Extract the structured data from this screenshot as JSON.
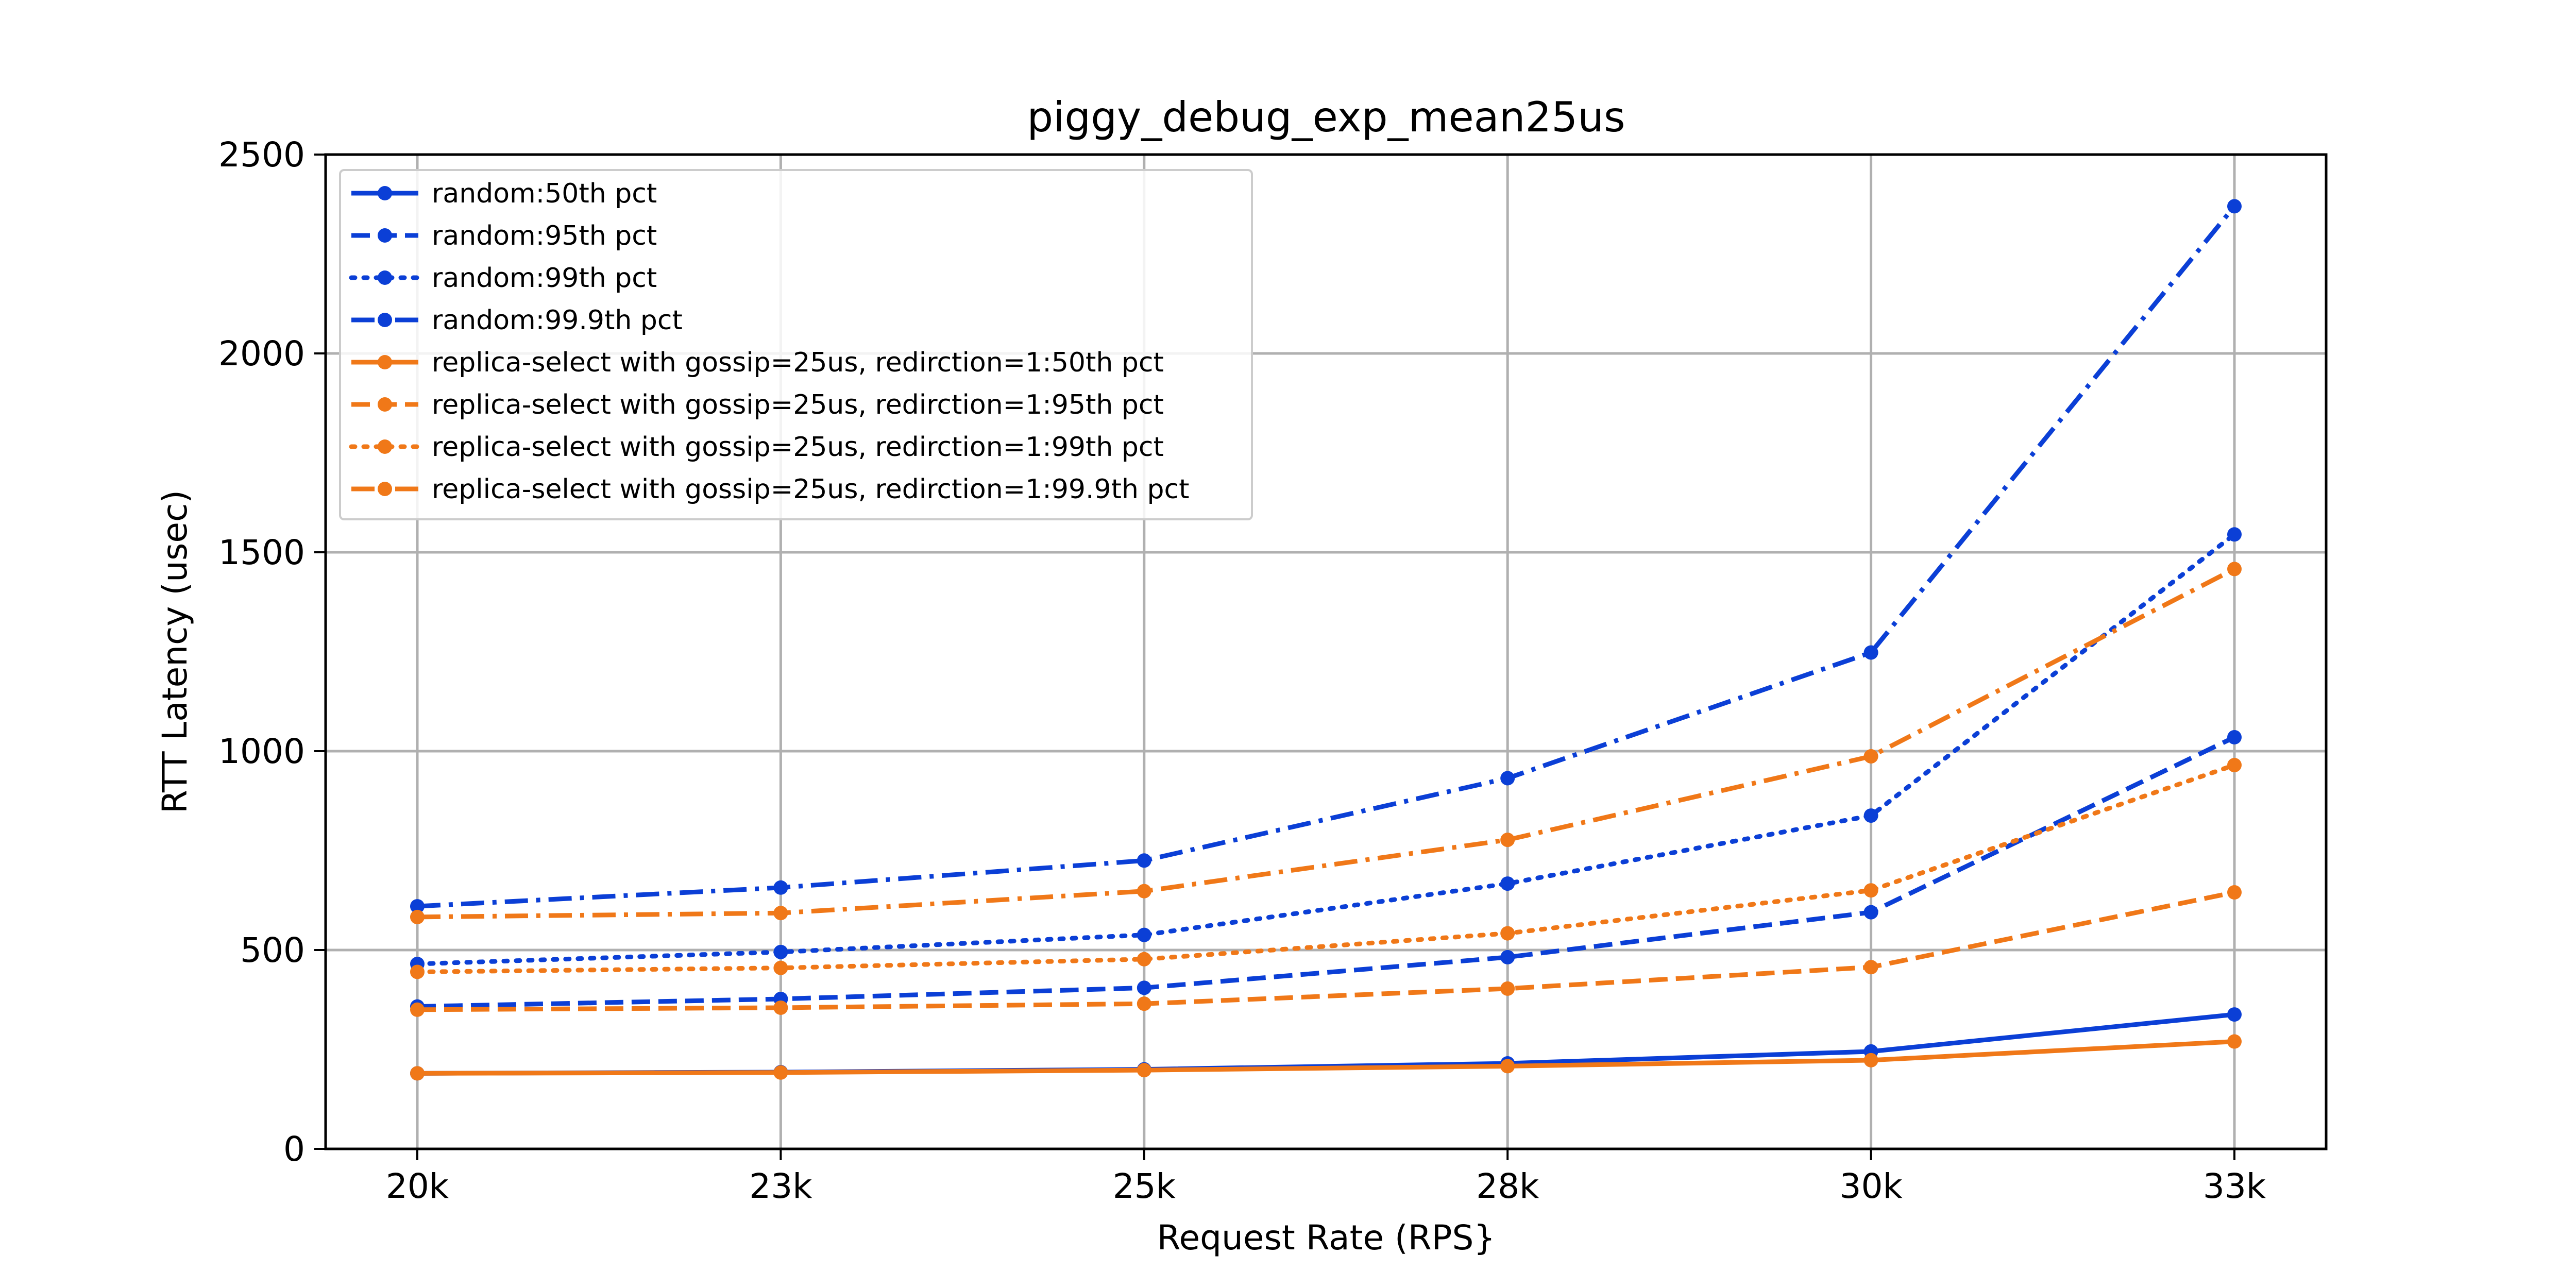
{
  "chart_data": {
    "type": "line",
    "title": "piggy_debug_exp_mean25us",
    "xlabel": "Request Rate (RPS}",
    "ylabel": "RTT Latency (usec)",
    "categories": [
      "20k",
      "23k",
      "25k",
      "28k",
      "30k",
      "33k"
    ],
    "ylim": [
      0,
      2500
    ],
    "yticks": [
      0,
      500,
      1000,
      1500,
      2000,
      2500
    ],
    "grid": true,
    "legend_position": "top-left",
    "colors": {
      "random": "#0b3fd6",
      "replica": "#f07818"
    },
    "series": [
      {
        "name": "random:50th pct",
        "color": "#0b3fd6",
        "style": "solid",
        "values": [
          190,
          193,
          200,
          215,
          245,
          338
        ]
      },
      {
        "name": "random:95th pct",
        "color": "#0b3fd6",
        "style": "dashed",
        "values": [
          358,
          377,
          405,
          482,
          595,
          1035
        ]
      },
      {
        "name": "random:99th pct",
        "color": "#0b3fd6",
        "style": "dotted",
        "values": [
          465,
          495,
          538,
          667,
          838,
          1545
        ]
      },
      {
        "name": "random:99.9th pct",
        "color": "#0b3fd6",
        "style": "dashdot",
        "values": [
          610,
          657,
          725,
          932,
          1248,
          2370
        ]
      },
      {
        "name": "replica-select with gossip=25us, redirction=1:50th pct",
        "color": "#f07818",
        "style": "solid",
        "values": [
          190,
          192,
          198,
          208,
          223,
          270
        ]
      },
      {
        "name": "replica-select with gossip=25us, redirction=1:95th pct",
        "color": "#f07818",
        "style": "dashed",
        "values": [
          350,
          355,
          365,
          403,
          457,
          645
        ]
      },
      {
        "name": "replica-select with gossip=25us, redirction=1:99th pct",
        "color": "#f07818",
        "style": "dotted",
        "values": [
          445,
          455,
          477,
          542,
          650,
          965
        ]
      },
      {
        "name": "replica-select with gossip=25us, redirction=1:99.9th pct",
        "color": "#f07818",
        "style": "dashdot",
        "values": [
          583,
          593,
          648,
          777,
          987,
          1458
        ]
      }
    ]
  }
}
